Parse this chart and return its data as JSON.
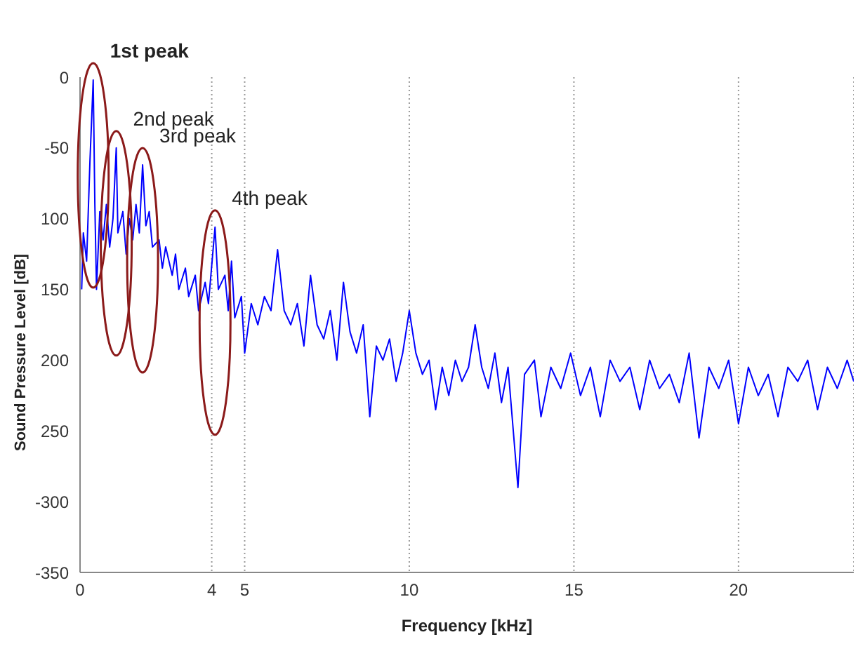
{
  "chart_data": {
    "type": "line",
    "xlabel": "Frequency [kHz]",
    "ylabel": "Sound Pressure  Level [dB]",
    "x": [
      0.05,
      0.1,
      0.2,
      0.3,
      0.4,
      0.45,
      0.5,
      0.6,
      0.7,
      0.8,
      0.9,
      1.0,
      1.1,
      1.15,
      1.3,
      1.4,
      1.5,
      1.6,
      1.7,
      1.8,
      1.9,
      2.0,
      2.1,
      2.2,
      2.4,
      2.5,
      2.6,
      2.8,
      2.9,
      3.0,
      3.2,
      3.3,
      3.5,
      3.6,
      3.8,
      3.9,
      4.1,
      4.2,
      4.4,
      4.5,
      4.6,
      4.7,
      4.9,
      5.0,
      5.2,
      5.4,
      5.6,
      5.8,
      6.0,
      6.2,
      6.4,
      6.6,
      6.8,
      7.0,
      7.2,
      7.4,
      7.6,
      7.8,
      8.0,
      8.2,
      8.4,
      8.6,
      8.8,
      9.0,
      9.2,
      9.4,
      9.6,
      9.8,
      10.0,
      10.2,
      10.4,
      10.6,
      10.8,
      11.0,
      11.2,
      11.4,
      11.6,
      11.8,
      12.0,
      12.2,
      12.4,
      12.6,
      12.8,
      13.0,
      13.3,
      13.5,
      13.8,
      14.0,
      14.3,
      14.6,
      14.9,
      15.2,
      15.5,
      15.8,
      16.1,
      16.4,
      16.7,
      17.0,
      17.3,
      17.6,
      17.9,
      18.2,
      18.5,
      18.8,
      19.1,
      19.4,
      19.7,
      20.0,
      20.3,
      20.6,
      20.9,
      21.2,
      21.5,
      21.8,
      22.1,
      22.4,
      22.7,
      23.0,
      23.3,
      23.5
    ],
    "series": [
      {
        "color": "#0000ff",
        "values": [
          -150,
          -110,
          -130,
          -60,
          -2,
          -90,
          -150,
          -95,
          -115,
          -90,
          -120,
          -100,
          -50,
          -110,
          -95,
          -125,
          -100,
          -115,
          -90,
          -110,
          -62,
          -105,
          -95,
          -120,
          -115,
          -135,
          -120,
          -140,
          -125,
          -150,
          -135,
          -155,
          -140,
          -165,
          -145,
          -160,
          -106,
          -150,
          -140,
          -165,
          -130,
          -170,
          -155,
          -195,
          -160,
          -175,
          -155,
          -165,
          -122,
          -165,
          -175,
          -160,
          -190,
          -140,
          -175,
          -185,
          -165,
          -200,
          -145,
          -180,
          -195,
          -175,
          -240,
          -190,
          -200,
          -185,
          -215,
          -195,
          -165,
          -195,
          -210,
          -200,
          -235,
          -205,
          -225,
          -200,
          -215,
          -205,
          -175,
          -205,
          -220,
          -195,
          -230,
          -205,
          -290,
          -210,
          -200,
          -240,
          -205,
          -220,
          -195,
          -225,
          -205,
          -240,
          -200,
          -215,
          -205,
          -235,
          -200,
          -220,
          -210,
          -230,
          -195,
          -255,
          -205,
          -220,
          -200,
          -245,
          -205,
          -225,
          -210,
          -240,
          -205,
          -215,
          -200,
          -235,
          -205,
          -220,
          -200,
          -215
        ]
      }
    ],
    "xlim": [
      0,
      23.5
    ],
    "xticks": [
      0,
      4,
      5,
      10,
      15,
      20
    ],
    "ylim": [
      -350,
      0
    ],
    "yticks": [
      0,
      -50,
      {
        "value": -100,
        "label": "100"
      },
      {
        "value": -150,
        "label": "150"
      },
      {
        "value": -200,
        "label": "200"
      },
      {
        "value": -250,
        "label": "250"
      },
      -300,
      -350
    ],
    "grid": "x",
    "marker": "none",
    "line_style": "solid",
    "annotations": [
      {
        "text": "1st peak",
        "x": 0.4,
        "y": -2
      },
      {
        "text": "2nd peak",
        "x": 1.1,
        "y": -50
      },
      {
        "text": "3rd peak",
        "x": 1.9,
        "y": -62
      },
      {
        "text": "4th peak",
        "x": 4.1,
        "y": -106
      }
    ]
  }
}
